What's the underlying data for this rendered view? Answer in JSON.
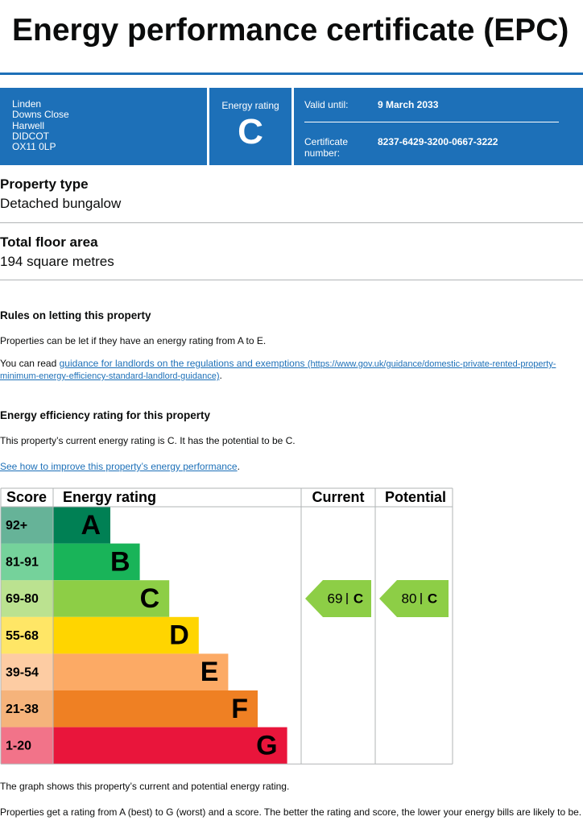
{
  "header": {
    "title": "Energy performance certificate (EPC)"
  },
  "summary": {
    "address": [
      "Linden",
      "Downs Close",
      "Harwell",
      "DIDCOT",
      "OX11 0LP"
    ],
    "rating_label": "Energy rating",
    "rating": "C",
    "valid_label": "Valid until:",
    "valid_date": "9 March 2033",
    "cert_label": "Certificate number:",
    "cert_number": "8237-6429-3200-0667-3222"
  },
  "property_type": {
    "heading": "Property type",
    "value": "Detached bungalow"
  },
  "floor_area": {
    "heading": "Total floor area",
    "value": "194 square metres"
  },
  "letting": {
    "heading": "Rules on letting this property",
    "text": "Properties can be let if they have an energy rating from A to E.",
    "read_prefix": "You can read ",
    "link_text": "guidance for landlords on the regulations and exemptions",
    "link_url": "(https://www.gov.uk/guidance/domestic-private-rented-property-minimum-energy-efficiency-standard-landlord-guidance)",
    "suffix": "."
  },
  "efficiency": {
    "heading": "Energy efficiency rating for this property",
    "text": "This property’s current energy rating is C. It has the potential to be C.",
    "link_text": "See how to improve this property’s energy performance",
    "suffix": "."
  },
  "rating_chart": {
    "headers": [
      "Score",
      "Energy rating",
      "Current",
      "Potential"
    ],
    "bands": [
      {
        "score": "92+",
        "letter": "A",
        "color": "#008054"
      },
      {
        "score": "81-91",
        "letter": "B",
        "color": "#19b459"
      },
      {
        "score": "69-80",
        "letter": "C",
        "color": "#8dce46"
      },
      {
        "score": "55-68",
        "letter": "D",
        "color": "#ffd500"
      },
      {
        "score": "39-54",
        "letter": "E",
        "color": "#fcaa65"
      },
      {
        "score": "21-38",
        "letter": "F",
        "color": "#ef8023"
      },
      {
        "score": "1-20",
        "letter": "G",
        "color": "#e9153b"
      }
    ],
    "current": {
      "score": 69,
      "letter": "C"
    },
    "potential": {
      "score": 80,
      "letter": "C"
    }
  },
  "footer": {
    "graph_note": "The graph shows this property’s current and potential energy rating.",
    "rating_note": "Properties get a rating from A (best) to G (worst) and a score. The better the rating and score, the lower your energy bills are likely to be."
  }
}
